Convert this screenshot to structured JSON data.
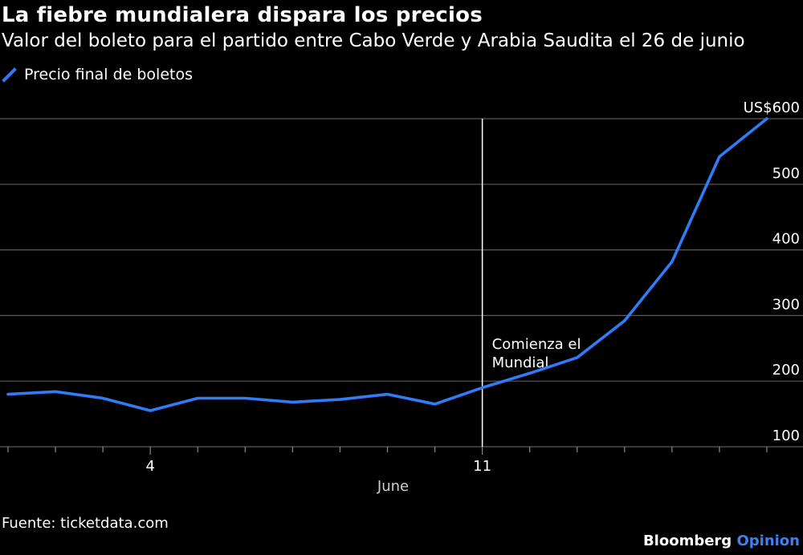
{
  "title": "La fiebre mundialera dispara los precios",
  "subtitle": "Valor del boleto para el partido entre Cabo Verde y Arabia Saudita el 26 de junio",
  "source": "Fuente: ticketdata.com",
  "brand": {
    "name": "Bloomberg",
    "accent": "Opinion"
  },
  "colors": {
    "line": "#2f7cf6",
    "grid": "#5a5a5a",
    "annotation_line": "#ffffff",
    "brand_accent": "#3d82f0"
  },
  "chart_data": {
    "type": "line",
    "title": "La fiebre mundialera dispara los precios",
    "subtitle": "Valor del boleto para el partido entre Cabo Verde y Arabia Saudita el 26 de junio",
    "xlabel": "June",
    "ylabel": "",
    "x": [
      1,
      2,
      3,
      4,
      5,
      6,
      7,
      8,
      9,
      10,
      11,
      12,
      13,
      14,
      15,
      16,
      17
    ],
    "series": [
      {
        "name": "Precio final de boletos",
        "values": [
          180,
          184,
          174,
          155,
          174,
          174,
          168,
          172,
          180,
          165,
          190,
          212,
          236,
          292,
          382,
          542,
          600
        ]
      }
    ],
    "x_ticks": [
      {
        "value": 4,
        "label": "4"
      },
      {
        "value": 11,
        "label": "11"
      }
    ],
    "y_ticks": [
      {
        "value": 100,
        "label": "100"
      },
      {
        "value": 200,
        "label": "200"
      },
      {
        "value": 300,
        "label": "300"
      },
      {
        "value": 400,
        "label": "400"
      },
      {
        "value": 500,
        "label": "500"
      },
      {
        "value": 600,
        "label": "US$600"
      }
    ],
    "ylim": [
      100,
      600
    ],
    "xlim": [
      1,
      17
    ],
    "grid": true,
    "legend_position": "top-left",
    "y_axis_position": "right",
    "annotation": {
      "x": 11,
      "lines": [
        "Comienza el",
        "Mundial"
      ]
    }
  }
}
